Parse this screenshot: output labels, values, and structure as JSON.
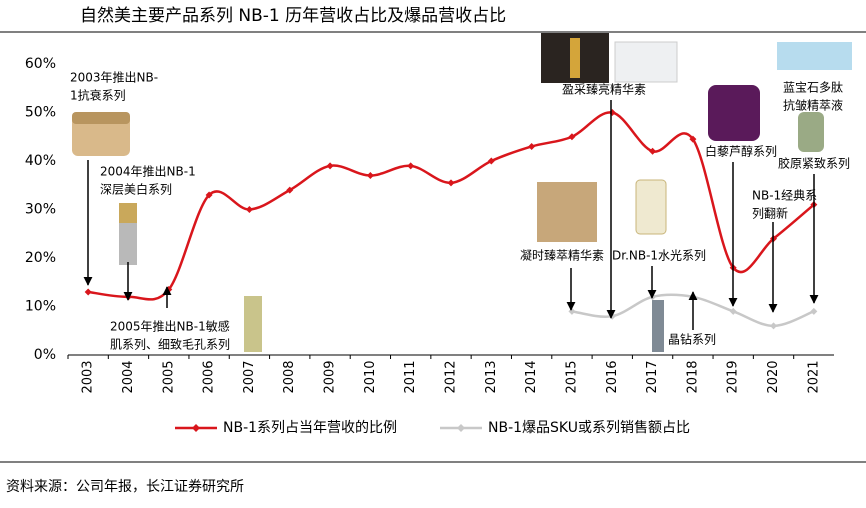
{
  "chart_data": {
    "type": "line",
    "title": "自然美主要产品系列 NB-1 历年营收占比及爆品营收占比",
    "source": "资料来源：公司年报，长江证券研究所",
    "categories": [
      "2003",
      "2004",
      "2005",
      "2006",
      "2007",
      "2008",
      "2009",
      "2010",
      "2011",
      "2012",
      "2013",
      "2014",
      "2015",
      "2016",
      "2017",
      "2018",
      "2019",
      "2020",
      "2021"
    ],
    "series": [
      {
        "name": "NB-1系列占当年营收的比例",
        "color": "#d9161c",
        "values": [
          13,
          12,
          13.5,
          33,
          30,
          34,
          39,
          37,
          39,
          35.5,
          40,
          43,
          45,
          50,
          42,
          44.5,
          18,
          24,
          31
        ]
      },
      {
        "name": "NB-1爆品SKU或系列销售额占比",
        "color": "#c8c8c8",
        "values": [
          null,
          null,
          null,
          null,
          null,
          null,
          null,
          null,
          null,
          null,
          null,
          null,
          9,
          8,
          12,
          12,
          9,
          6,
          9
        ]
      }
    ],
    "ylim": [
      0,
      60
    ],
    "yticks": [
      {
        "value": 0,
        "label": "0%"
      },
      {
        "value": 10,
        "label": "10%"
      },
      {
        "value": 20,
        "label": "20%"
      },
      {
        "value": 30,
        "label": "30%"
      },
      {
        "value": 40,
        "label": "40%"
      },
      {
        "value": 50,
        "label": "50%"
      },
      {
        "value": 60,
        "label": "60%"
      }
    ],
    "annotations": [
      {
        "lines": [
          "2003年推出NB-",
          "1抗衰系列"
        ]
      },
      {
        "lines": [
          "2004年推出NB-1",
          "深层美白系列"
        ]
      },
      {
        "lines": [
          "2005年推出NB-1敏感",
          "肌系列、细致毛孔系列"
        ]
      },
      {
        "lines": [
          "盈采臻亮精华素"
        ]
      },
      {
        "lines": [
          "凝时臻萃精华素"
        ]
      },
      {
        "lines": [
          "Dr.NB-1水光系列"
        ]
      },
      {
        "lines": [
          "晶钻系列"
        ]
      },
      {
        "lines": [
          "白藜芦醇系列"
        ]
      },
      {
        "lines": [
          "NB-1经典系",
          "列翻新"
        ]
      },
      {
        "lines": [
          "蓝宝石多肽",
          "抗皱精萃液"
        ]
      },
      {
        "lines": [
          "胶原紧致系列"
        ]
      }
    ]
  }
}
